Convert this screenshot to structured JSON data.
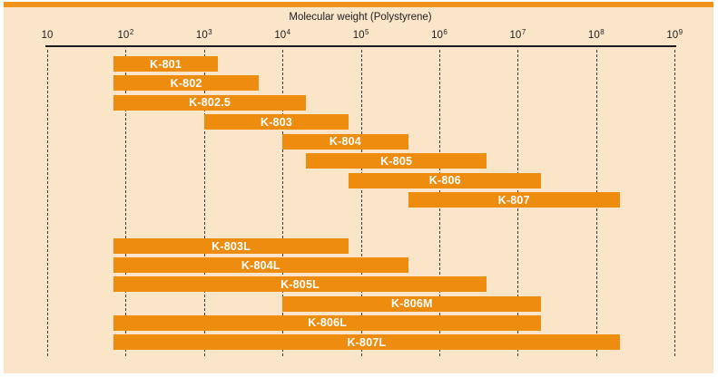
{
  "figure": {
    "title": "Molecular weight (Polystyrene)"
  },
  "axis": {
    "ticks": [
      {
        "base": "10",
        "sup": "",
        "exp": 1
      },
      {
        "base": "10",
        "sup": "2",
        "exp": 2
      },
      {
        "base": "10",
        "sup": "3",
        "exp": 3
      },
      {
        "base": "10",
        "sup": "4",
        "exp": 4
      },
      {
        "base": "10",
        "sup": "5",
        "exp": 5
      },
      {
        "base": "10",
        "sup": "6",
        "exp": 6
      },
      {
        "base": "10",
        "sup": "7",
        "exp": 7
      },
      {
        "base": "10",
        "sup": "8",
        "exp": 8
      },
      {
        "base": "10",
        "sup": "9",
        "exp": 9
      }
    ]
  },
  "chart_data": {
    "type": "bar",
    "subtype": "horizontal-range-bars",
    "title": "Molecular weight (Polystyrene)",
    "xlabel": "Molecular weight (Polystyrene)",
    "xscale": "log10",
    "xlim": [
      10,
      1000000000
    ],
    "xticks": [
      "10",
      "10^2",
      "10^3",
      "10^4",
      "10^5",
      "10^6",
      "10^7",
      "10^8",
      "10^9"
    ],
    "grid": "vertical-dashed",
    "legend": "none",
    "series": [
      {
        "name": "K-801",
        "group": 0,
        "range": [
          70,
          1500
        ]
      },
      {
        "name": "K-802",
        "group": 0,
        "range": [
          70,
          5000
        ]
      },
      {
        "name": "K-802.5",
        "group": 0,
        "range": [
          70,
          20000
        ]
      },
      {
        "name": "K-803",
        "group": 0,
        "range": [
          1000,
          70000
        ]
      },
      {
        "name": "K-804",
        "group": 0,
        "range": [
          10000,
          400000
        ]
      },
      {
        "name": "K-805",
        "group": 0,
        "range": [
          20000,
          4000000
        ]
      },
      {
        "name": "K-806",
        "group": 0,
        "range": [
          70000,
          20000000
        ]
      },
      {
        "name": "K-807",
        "group": 0,
        "range": [
          400000,
          200000000
        ]
      },
      {
        "name": "K-803L",
        "group": 1,
        "range": [
          70,
          70000
        ]
      },
      {
        "name": "K-804L",
        "group": 1,
        "range": [
          70,
          400000
        ]
      },
      {
        "name": "K-805L",
        "group": 1,
        "range": [
          70,
          4000000
        ]
      },
      {
        "name": "K-806M",
        "group": 1,
        "range": [
          10000,
          20000000
        ]
      },
      {
        "name": "K-806L",
        "group": 1,
        "range": [
          70,
          20000000
        ]
      },
      {
        "name": "K-807L",
        "group": 1,
        "range": [
          70,
          200000000
        ]
      }
    ]
  },
  "colors": {
    "page_bg": "#ffffff",
    "panel_bg": "#fae5c9",
    "top_strip": "#f0931d",
    "bar": "#ee8c10",
    "bar_label": "#ffffff",
    "axis_line": "#1c1c1c",
    "gridline": "#3a3a3a",
    "text": "#1c1c1c"
  }
}
